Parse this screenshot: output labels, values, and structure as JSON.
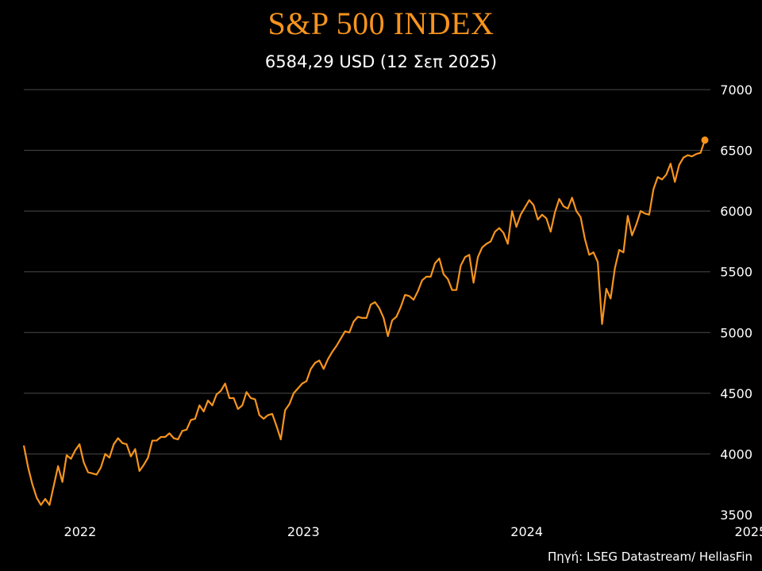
{
  "chart_data": {
    "type": "line",
    "title": "S&P 500 INDEX",
    "subtitle": "6584,29 USD (12 Σεπ 2025)",
    "source": "Πηγή: LSEG Datastream/ HellasFin",
    "xlabel": "",
    "ylabel": "",
    "ylim": [
      3500,
      7000
    ],
    "yticks": [
      3500,
      4000,
      4500,
      5000,
      5500,
      6000,
      6500,
      7000
    ],
    "xtick_labels": [
      {
        "label": "2022",
        "date": "2022-01-01"
      },
      {
        "label": "2023",
        "date": "2023-01-01"
      },
      {
        "label": "2024",
        "date": "2024-01-01"
      },
      {
        "label": "2025",
        "date": "2025-01-01"
      }
    ],
    "grid": true,
    "line_color": "#f7941d",
    "series": [
      {
        "last_point_marker": true,
        "points": [
          [
            "2021-10-01",
            4070
          ],
          [
            "2021-10-08",
            3890
          ],
          [
            "2021-10-15",
            3750
          ],
          [
            "2021-10-22",
            3640
          ],
          [
            "2021-10-29",
            3580
          ],
          [
            "2021-11-05",
            3630
          ],
          [
            "2021-11-12",
            3580
          ],
          [
            "2021-11-19",
            3740
          ],
          [
            "2021-11-26",
            3900
          ],
          [
            "2021-12-03",
            3770
          ],
          [
            "2021-12-10",
            3990
          ],
          [
            "2021-12-17",
            3960
          ],
          [
            "2021-12-24",
            4030
          ],
          [
            "2021-12-31",
            4080
          ],
          [
            "2022-01-07",
            3930
          ],
          [
            "2022-01-14",
            3850
          ],
          [
            "2022-01-21",
            3840
          ],
          [
            "2022-01-28",
            3830
          ],
          [
            "2022-02-04",
            3890
          ],
          [
            "2022-02-11",
            4000
          ],
          [
            "2022-02-18",
            3970
          ],
          [
            "2022-02-25",
            4080
          ],
          [
            "2022-03-04",
            4130
          ],
          [
            "2022-03-11",
            4090
          ],
          [
            "2022-03-18",
            4080
          ],
          [
            "2022-03-25",
            3980
          ],
          [
            "2022-04-01",
            4040
          ],
          [
            "2022-04-08",
            3860
          ],
          [
            "2022-04-15",
            3910
          ],
          [
            "2022-04-22",
            3970
          ],
          [
            "2022-04-29",
            4110
          ],
          [
            "2022-05-06",
            4110
          ],
          [
            "2022-05-13",
            4140
          ],
          [
            "2022-05-20",
            4140
          ],
          [
            "2022-05-27",
            4170
          ],
          [
            "2022-06-03",
            4130
          ],
          [
            "2022-06-10",
            4120
          ],
          [
            "2022-06-17",
            4190
          ],
          [
            "2022-06-24",
            4200
          ],
          [
            "2022-07-01",
            4280
          ],
          [
            "2022-07-08",
            4290
          ],
          [
            "2022-07-15",
            4400
          ],
          [
            "2022-07-22",
            4350
          ],
          [
            "2022-07-29",
            4440
          ],
          [
            "2022-08-05",
            4400
          ],
          [
            "2022-08-12",
            4490
          ],
          [
            "2022-08-19",
            4520
          ],
          [
            "2022-08-26",
            4580
          ],
          [
            "2022-09-02",
            4460
          ],
          [
            "2022-09-09",
            4460
          ],
          [
            "2022-09-16",
            4370
          ],
          [
            "2022-09-23",
            4400
          ],
          [
            "2022-09-30",
            4510
          ],
          [
            "2022-10-07",
            4460
          ],
          [
            "2022-10-14",
            4450
          ],
          [
            "2022-10-21",
            4320
          ],
          [
            "2022-10-28",
            4290
          ],
          [
            "2022-11-04",
            4320
          ],
          [
            "2022-11-11",
            4330
          ],
          [
            "2022-11-18",
            4230
          ],
          [
            "2022-11-25",
            4120
          ],
          [
            "2022-12-02",
            4360
          ],
          [
            "2022-12-09",
            4410
          ],
          [
            "2022-12-16",
            4500
          ],
          [
            "2022-12-23",
            4540
          ],
          [
            "2022-12-30",
            4580
          ],
          [
            "2023-01-06",
            4600
          ],
          [
            "2023-01-13",
            4700
          ],
          [
            "2023-01-20",
            4750
          ],
          [
            "2023-01-27",
            4770
          ],
          [
            "2023-02-03",
            4700
          ],
          [
            "2023-02-10",
            4780
          ],
          [
            "2023-02-17",
            4840
          ],
          [
            "2023-02-24",
            4890
          ],
          [
            "2023-03-03",
            4950
          ],
          [
            "2023-03-10",
            5010
          ],
          [
            "2023-03-17",
            5000
          ],
          [
            "2023-03-24",
            5090
          ],
          [
            "2023-03-31",
            5130
          ],
          [
            "2023-04-07",
            5120
          ],
          [
            "2023-04-14",
            5120
          ],
          [
            "2023-04-21",
            5230
          ],
          [
            "2023-04-28",
            5250
          ],
          [
            "2023-05-05",
            5200
          ],
          [
            "2023-05-12",
            5120
          ],
          [
            "2023-05-19",
            4970
          ],
          [
            "2023-05-26",
            5100
          ],
          [
            "2023-06-02",
            5130
          ],
          [
            "2023-06-09",
            5210
          ],
          [
            "2023-06-16",
            5310
          ],
          [
            "2023-06-23",
            5300
          ],
          [
            "2023-06-30",
            5270
          ],
          [
            "2023-07-07",
            5340
          ],
          [
            "2023-07-14",
            5430
          ],
          [
            "2023-07-21",
            5460
          ],
          [
            "2023-07-28",
            5460
          ],
          [
            "2023-08-04",
            5570
          ],
          [
            "2023-08-11",
            5610
          ],
          [
            "2023-08-18",
            5480
          ],
          [
            "2023-08-25",
            5440
          ],
          [
            "2023-09-01",
            5350
          ],
          [
            "2023-09-08",
            5350
          ],
          [
            "2023-09-15",
            5550
          ],
          [
            "2023-09-22",
            5620
          ],
          [
            "2023-09-29",
            5640
          ],
          [
            "2023-10-06",
            5410
          ],
          [
            "2023-10-13",
            5620
          ],
          [
            "2023-10-20",
            5700
          ],
          [
            "2023-10-27",
            5730
          ],
          [
            "2023-11-03",
            5750
          ],
          [
            "2023-11-10",
            5830
          ],
          [
            "2023-11-17",
            5860
          ],
          [
            "2023-11-24",
            5820
          ],
          [
            "2023-12-01",
            5730
          ],
          [
            "2023-12-08",
            6000
          ],
          [
            "2023-12-15",
            5870
          ],
          [
            "2023-12-22",
            5970
          ],
          [
            "2023-12-29",
            6030
          ],
          [
            "2024-01-05",
            6090
          ],
          [
            "2024-01-12",
            6050
          ],
          [
            "2024-01-19",
            5930
          ],
          [
            "2024-01-26",
            5970
          ],
          [
            "2024-02-02",
            5940
          ],
          [
            "2024-02-09",
            5830
          ],
          [
            "2024-02-16",
            5990
          ],
          [
            "2024-02-23",
            6100
          ],
          [
            "2024-03-01",
            6040
          ],
          [
            "2024-03-08",
            6020
          ],
          [
            "2024-03-15",
            6110
          ],
          [
            "2024-03-22",
            6000
          ],
          [
            "2024-03-29",
            5950
          ],
          [
            "2024-04-05",
            5770
          ],
          [
            "2024-04-12",
            5640
          ],
          [
            "2024-04-19",
            5660
          ],
          [
            "2024-04-26",
            5580
          ],
          [
            "2024-05-03",
            5070
          ],
          [
            "2024-05-10",
            5360
          ],
          [
            "2024-05-17",
            5280
          ],
          [
            "2024-05-24",
            5530
          ],
          [
            "2024-05-31",
            5680
          ],
          [
            "2024-06-07",
            5660
          ],
          [
            "2024-06-14",
            5960
          ],
          [
            "2024-06-21",
            5800
          ],
          [
            "2024-06-28",
            5890
          ],
          [
            "2024-07-05",
            6000
          ],
          [
            "2024-07-12",
            5980
          ],
          [
            "2024-07-19",
            5970
          ],
          [
            "2024-07-26",
            6180
          ],
          [
            "2024-08-02",
            6280
          ],
          [
            "2024-08-09",
            6260
          ],
          [
            "2024-08-16",
            6300
          ],
          [
            "2024-08-23",
            6390
          ],
          [
            "2024-08-30",
            6240
          ],
          [
            "2024-09-06",
            6380
          ],
          [
            "2024-09-13",
            6440
          ],
          [
            "2024-09-20",
            6460
          ],
          [
            "2024-09-27",
            6450
          ],
          [
            "2024-10-04",
            6470
          ],
          [
            "2024-10-11",
            6480
          ],
          [
            "2024-10-18",
            6584.29
          ]
        ]
      }
    ]
  }
}
